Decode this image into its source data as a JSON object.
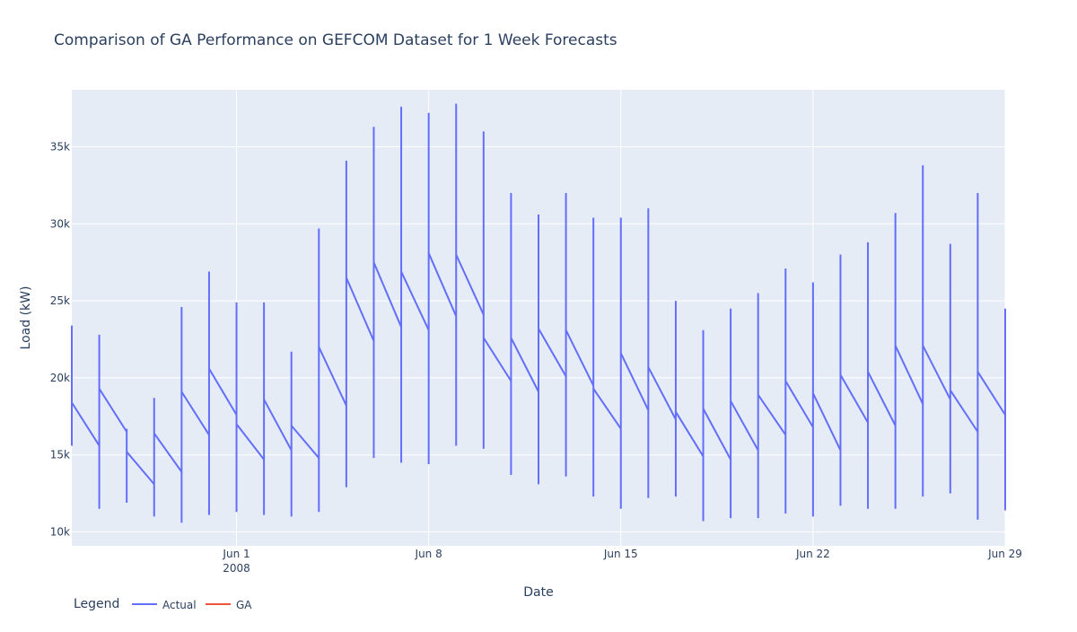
{
  "chart_data": {
    "type": "line",
    "title": "Comparison of GA Performance on GEFCOM Dataset for 1 Week Forecasts",
    "xlabel": "Date",
    "ylabel": "Load (kW)",
    "x_range": [
      "2008-05-26",
      "2008-06-29"
    ],
    "ylim": [
      9100,
      38700
    ],
    "y_ticks": [
      {
        "value": 10000,
        "label": "10k"
      },
      {
        "value": 15000,
        "label": "15k"
      },
      {
        "value": 20000,
        "label": "20k"
      },
      {
        "value": 25000,
        "label": "25k"
      },
      {
        "value": 30000,
        "label": "30k"
      },
      {
        "value": 35000,
        "label": "35k"
      }
    ],
    "x_ticks": [
      {
        "date": "2008-06-01",
        "label": "Jun 1",
        "sublabel": "2008"
      },
      {
        "date": "2008-06-08",
        "label": "Jun 8",
        "sublabel": ""
      },
      {
        "date": "2008-06-15",
        "label": "Jun 15",
        "sublabel": ""
      },
      {
        "date": "2008-06-22",
        "label": "Jun 22",
        "sublabel": ""
      },
      {
        "date": "2008-06-29",
        "label": "Jun 29",
        "sublabel": ""
      }
    ],
    "grid": true,
    "legend": {
      "title": "Legend",
      "placement": "bottom-left",
      "entries": [
        {
          "name": "Actual",
          "color": "#636efa"
        },
        {
          "name": "GA",
          "color": "#ef553b"
        }
      ]
    },
    "series": [
      {
        "name": "Actual",
        "color": "#636efa",
        "days": [
          {
            "date": "2008-05-26",
            "first": 18400,
            "last": 15600,
            "min": 15600,
            "max": 23400
          },
          {
            "date": "2008-05-27",
            "first": 19300,
            "last": 16500,
            "min": 11500,
            "max": 22800
          },
          {
            "date": "2008-05-28",
            "first": 15200,
            "last": 13100,
            "min": 11900,
            "max": 16700
          },
          {
            "date": "2008-05-29",
            "first": 16400,
            "last": 13900,
            "min": 11000,
            "max": 18700
          },
          {
            "date": "2008-05-30",
            "first": 19100,
            "last": 16300,
            "min": 10600,
            "max": 24600
          },
          {
            "date": "2008-05-31",
            "first": 20600,
            "last": 17600,
            "min": 11100,
            "max": 26900
          },
          {
            "date": "2008-06-01",
            "first": 17000,
            "last": 14700,
            "min": 11300,
            "max": 24900
          },
          {
            "date": "2008-06-02",
            "first": 18600,
            "last": 15300,
            "min": 11100,
            "max": 24900
          },
          {
            "date": "2008-06-03",
            "first": 16900,
            "last": 14800,
            "min": 11000,
            "max": 21700
          },
          {
            "date": "2008-06-04",
            "first": 22000,
            "last": 18200,
            "min": 11300,
            "max": 29700
          },
          {
            "date": "2008-06-05",
            "first": 26500,
            "last": 22400,
            "min": 12900,
            "max": 34100
          },
          {
            "date": "2008-06-06",
            "first": 27500,
            "last": 23300,
            "min": 14800,
            "max": 36300
          },
          {
            "date": "2008-06-07",
            "first": 26900,
            "last": 23100,
            "min": 14500,
            "max": 37600
          },
          {
            "date": "2008-06-08",
            "first": 28100,
            "last": 24000,
            "min": 14400,
            "max": 37200
          },
          {
            "date": "2008-06-09",
            "first": 28000,
            "last": 24100,
            "min": 15600,
            "max": 37800
          },
          {
            "date": "2008-06-10",
            "first": 22600,
            "last": 19800,
            "min": 15400,
            "max": 36000
          },
          {
            "date": "2008-06-11",
            "first": 22600,
            "last": 19100,
            "min": 13700,
            "max": 32000
          },
          {
            "date": "2008-06-12",
            "first": 23200,
            "last": 20100,
            "min": 13100,
            "max": 30600
          },
          {
            "date": "2008-06-13",
            "first": 23100,
            "last": 19500,
            "min": 13600,
            "max": 32000
          },
          {
            "date": "2008-06-14",
            "first": 19300,
            "last": 16700,
            "min": 12300,
            "max": 30400
          },
          {
            "date": "2008-06-15",
            "first": 21600,
            "last": 17900,
            "min": 11500,
            "max": 30400
          },
          {
            "date": "2008-06-16",
            "first": 20700,
            "last": 17300,
            "min": 12200,
            "max": 31000
          },
          {
            "date": "2008-06-17",
            "first": 17800,
            "last": 14900,
            "min": 12300,
            "max": 25000
          },
          {
            "date": "2008-06-18",
            "first": 18000,
            "last": 14700,
            "min": 10700,
            "max": 23100
          },
          {
            "date": "2008-06-19",
            "first": 18500,
            "last": 15300,
            "min": 10900,
            "max": 24500
          },
          {
            "date": "2008-06-20",
            "first": 18900,
            "last": 16300,
            "min": 10900,
            "max": 25500
          },
          {
            "date": "2008-06-21",
            "first": 19800,
            "last": 16800,
            "min": 11200,
            "max": 27100
          },
          {
            "date": "2008-06-22",
            "first": 19000,
            "last": 15300,
            "min": 11000,
            "max": 26200
          },
          {
            "date": "2008-06-23",
            "first": 20200,
            "last": 17100,
            "min": 11700,
            "max": 28000
          },
          {
            "date": "2008-06-24",
            "first": 20400,
            "last": 16900,
            "min": 11500,
            "max": 28800
          },
          {
            "date": "2008-06-25",
            "first": 22100,
            "last": 18300,
            "min": 11500,
            "max": 30700
          },
          {
            "date": "2008-06-26",
            "first": 22100,
            "last": 18600,
            "min": 12300,
            "max": 33800
          },
          {
            "date": "2008-06-27",
            "first": 19200,
            "last": 16500,
            "min": 12500,
            "max": 28700
          },
          {
            "date": "2008-06-28",
            "first": 20400,
            "last": 17600,
            "min": 10800,
            "max": 32000
          },
          {
            "date": "2008-06-29",
            "first": 17600,
            "last": 17600,
            "min": 11400,
            "max": 24500
          }
        ]
      },
      {
        "name": "GA",
        "color": "#ef553b",
        "days": []
      }
    ]
  }
}
